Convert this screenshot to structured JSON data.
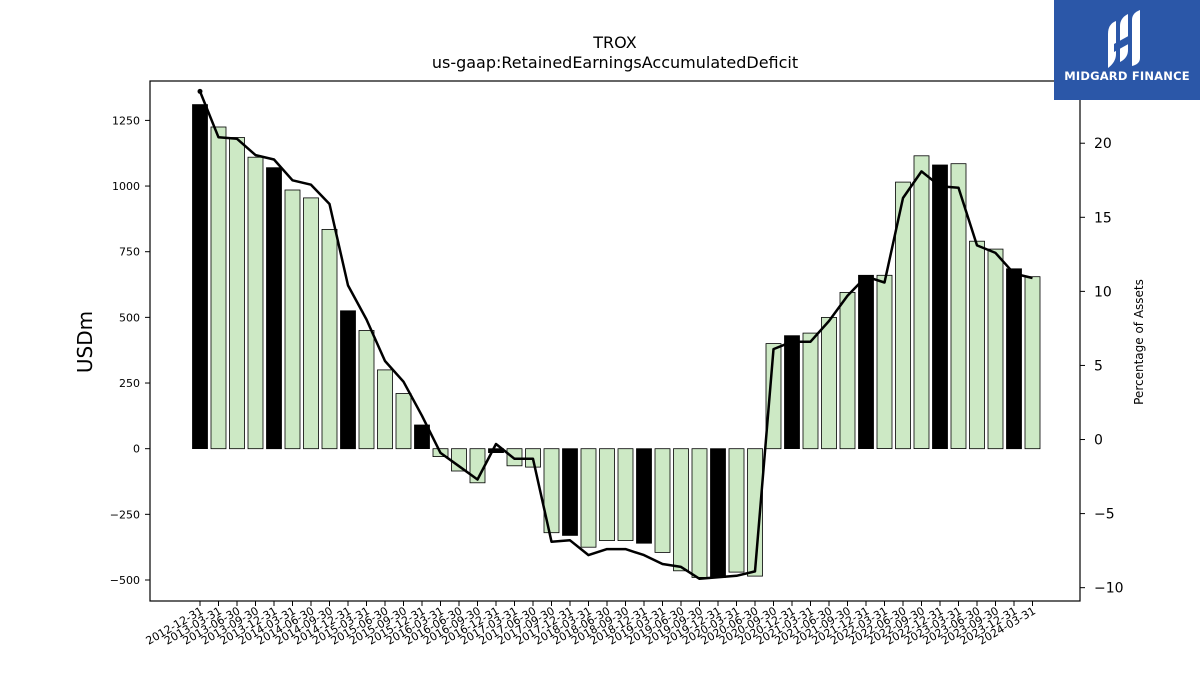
{
  "chart_data": {
    "type": "bar",
    "title": "TROX",
    "subtitle": "us-gaap:RetainedEarningsAccumulatedDeficit",
    "ylabel": "USDm",
    "y2label": "Percentage of Assets",
    "ylim": [
      -580,
      1400
    ],
    "y2lim": [
      -10.9,
      24.2
    ],
    "yticks": [
      -500,
      -250,
      0,
      250,
      500,
      750,
      1000,
      1250
    ],
    "y2ticks": [
      -10,
      -5,
      0,
      5,
      10,
      15,
      20
    ],
    "grid": false,
    "legend": "none",
    "bar_colors": {
      "annual": "#000000",
      "quarterly": "#cde9c5",
      "edge": "#000000"
    },
    "line_color": "#000000",
    "categories": [
      "2012-12-31",
      "2013-03-31",
      "2013-06-30",
      "2013-09-30",
      "2013-12-31",
      "2014-03-31",
      "2014-06-30",
      "2014-09-30",
      "2014-12-31",
      "2015-03-31",
      "2015-06-30",
      "2015-09-30",
      "2015-12-31",
      "2016-03-31",
      "2016-06-30",
      "2016-09-30",
      "2016-12-31",
      "2017-03-31",
      "2017-06-30",
      "2017-09-30",
      "2017-12-31",
      "2018-03-31",
      "2018-06-30",
      "2018-09-30",
      "2018-12-31",
      "2019-03-31",
      "2019-06-30",
      "2019-09-30",
      "2019-12-31",
      "2020-03-31",
      "2020-06-30",
      "2020-09-30",
      "2020-12-31",
      "2021-03-31",
      "2021-06-30",
      "2021-09-30",
      "2021-12-31",
      "2022-03-31",
      "2022-06-30",
      "2022-09-30",
      "2022-12-31",
      "2023-03-31",
      "2023-06-30",
      "2023-09-30",
      "2023-12-31",
      "2024-03-31"
    ],
    "series": [
      {
        "type": "bar",
        "axis": "left",
        "values": [
          1310,
          1225,
          1185,
          1110,
          1070,
          985,
          955,
          835,
          525,
          450,
          300,
          210,
          90,
          -30,
          -85,
          -130,
          -15,
          -65,
          -70,
          -320,
          -330,
          -375,
          -350,
          -350,
          -360,
          -395,
          -465,
          -490,
          -490,
          -470,
          -485,
          400,
          430,
          440,
          500,
          595,
          660,
          660,
          1015,
          1115,
          1080,
          1085,
          790,
          760,
          685,
          655
        ],
        "annual": [
          true,
          false,
          false,
          false,
          true,
          false,
          false,
          false,
          true,
          false,
          false,
          false,
          true,
          false,
          false,
          false,
          true,
          false,
          false,
          false,
          true,
          false,
          false,
          false,
          true,
          false,
          false,
          false,
          true,
          false,
          false,
          false,
          true,
          false,
          false,
          false,
          true,
          false,
          false,
          false,
          true,
          false,
          false,
          false,
          true,
          false
        ]
      },
      {
        "type": "line",
        "axis": "right",
        "values": [
          23.5,
          20.4,
          20.3,
          19.2,
          18.9,
          17.5,
          17.2,
          15.9,
          10.4,
          8.1,
          5.3,
          3.9,
          1.6,
          -0.9,
          -1.8,
          -2.7,
          -0.3,
          -1.3,
          -1.3,
          -6.9,
          -6.8,
          -7.8,
          -7.4,
          -7.4,
          -7.8,
          -8.4,
          -8.6,
          -9.4,
          -9.3,
          -9.2,
          -8.9,
          6.1,
          6.6,
          6.6,
          8.0,
          9.7,
          11.0,
          10.6,
          16.3,
          18.1,
          17.1,
          17.0,
          13.1,
          12.6,
          11.2,
          10.9
        ]
      }
    ]
  },
  "logo": {
    "text": "MIDGARD FINANCE"
  }
}
